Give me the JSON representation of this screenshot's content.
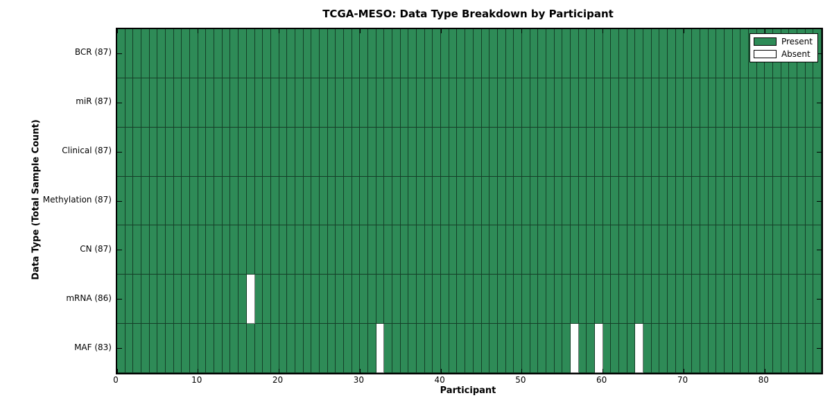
{
  "chart_data": {
    "type": "heatmap",
    "title": "TCGA-MESO: Data Type Breakdown by Participant",
    "xlabel": "Participant",
    "ylabel": "Data Type (Total Sample Count)",
    "x_range": [
      0,
      87
    ],
    "x_ticks": [
      0,
      10,
      20,
      30,
      40,
      50,
      60,
      70,
      80
    ],
    "n_participants": 87,
    "grid": "cell-borders",
    "legend_position": "upper right",
    "legend": [
      {
        "label": "Present",
        "color": "#2E8B57"
      },
      {
        "label": "Absent",
        "color": "#FFFFFF"
      }
    ],
    "rows": [
      {
        "label": "BCR (87)",
        "data_type": "BCR",
        "present_count": 87,
        "absent_participants": []
      },
      {
        "label": "miR (87)",
        "data_type": "miR",
        "present_count": 87,
        "absent_participants": []
      },
      {
        "label": "Clinical (87)",
        "data_type": "Clinical",
        "present_count": 87,
        "absent_participants": []
      },
      {
        "label": "Methylation (87)",
        "data_type": "Methylation",
        "present_count": 87,
        "absent_participants": []
      },
      {
        "label": "CN (87)",
        "data_type": "CN",
        "present_count": 87,
        "absent_participants": []
      },
      {
        "label": "mRNA (86)",
        "data_type": "mRNA",
        "present_count": 86,
        "absent_participants": [
          16
        ]
      },
      {
        "label": "MAF (83)",
        "data_type": "MAF",
        "present_count": 83,
        "absent_participants": [
          32,
          56,
          59,
          64
        ]
      }
    ],
    "colors": {
      "present": "#2E8B57",
      "absent": "#FFFFFF",
      "cell_edge": "rgba(0,0,0,0.55)",
      "axis": "#000000",
      "background": "#FFFFFF"
    }
  }
}
